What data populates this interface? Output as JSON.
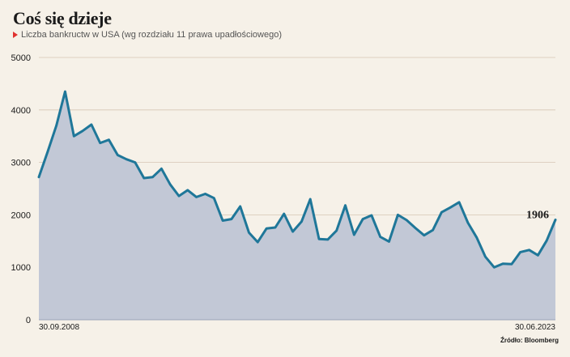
{
  "title": "Coś się dzieje",
  "subtitle": "Liczba bankructw w USA (wg rozdziału 11 prawa upadłościowego)",
  "source": "Źródło: Bloomberg",
  "colors": {
    "line": "#1f7799",
    "area": "#c2c8d6",
    "marker": "#e0312f",
    "grid": "#d6c6b4",
    "background": "#f6f1e8"
  },
  "chart_data": {
    "type": "area",
    "title": "",
    "ylim": [
      0,
      5000
    ],
    "yticks": [
      "5000",
      "4000",
      "3000",
      "2000",
      "1000",
      "0"
    ],
    "x_start_label": "30.09.2008",
    "x_end_label": "30.06.2023",
    "last_value_label": "1906",
    "grid": true,
    "values": [
      2720,
      3200,
      3700,
      4350,
      3500,
      3600,
      3720,
      3370,
      3430,
      3140,
      3060,
      3000,
      2700,
      2720,
      2880,
      2580,
      2360,
      2470,
      2340,
      2400,
      2320,
      1890,
      1920,
      2160,
      1660,
      1480,
      1740,
      1760,
      2020,
      1680,
      1870,
      2300,
      1540,
      1530,
      1700,
      2180,
      1620,
      1920,
      1990,
      1580,
      1490,
      2000,
      1900,
      1750,
      1610,
      1710,
      2050,
      2140,
      2240,
      1850,
      1570,
      1200,
      1000,
      1070,
      1060,
      1290,
      1330,
      1230,
      1510,
      1906
    ]
  }
}
